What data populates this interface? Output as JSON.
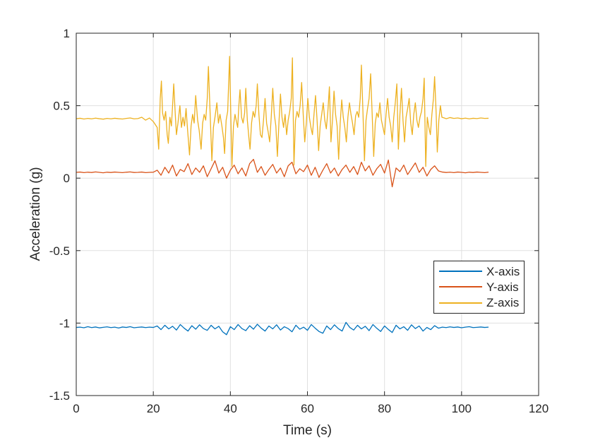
{
  "figure": {
    "background": "#ffffff"
  },
  "chart_data": {
    "type": "line",
    "title": "",
    "xlabel": "Time (s)",
    "ylabel": "Acceleration (g)",
    "xlim": [
      0,
      120
    ],
    "ylim": [
      -1.5,
      1
    ],
    "xticks": [
      0,
      20,
      40,
      60,
      80,
      100,
      120
    ],
    "xtick_labels": [
      "0",
      "20",
      "40",
      "60",
      "80",
      "100",
      "120"
    ],
    "yticks": [
      -1.5,
      -1,
      -0.5,
      0,
      0.5,
      1
    ],
    "ytick_labels": [
      "-1.5",
      "-1",
      "-0.5",
      "0",
      "0.5",
      "1"
    ],
    "grid": true,
    "grid_color": "#e0e0e0",
    "axis_color": "#262626",
    "text_color": "#262626",
    "legend": {
      "position": "right-middle",
      "entries": [
        "X-axis",
        "Y-axis",
        "Z-axis"
      ]
    },
    "series": [
      {
        "name": "X-axis",
        "color": "#0072BD",
        "t_start": 0,
        "t_step": 1,
        "values": [
          -1.03,
          -1.028,
          -1.032,
          -1.025,
          -1.031,
          -1.027,
          -1.033,
          -1.029,
          -1.026,
          -1.031,
          -1.028,
          -1.034,
          -1.027,
          -1.03,
          -1.025,
          -1.032,
          -1.029,
          -1.027,
          -1.031,
          -1.028,
          -1.03,
          -1.02,
          -1.045,
          -1.015,
          -1.04,
          -1.022,
          -1.048,
          -1.01,
          -1.035,
          -1.055,
          -1.018,
          -1.042,
          -1.012,
          -1.038,
          -1.05,
          -1.015,
          -1.04,
          -1.022,
          -1.06,
          -1.08,
          -1.025,
          -1.045,
          -1.01,
          -1.038,
          -1.052,
          -1.018,
          -1.042,
          -1.008,
          -1.035,
          -1.055,
          -1.02,
          -1.04,
          -1.012,
          -1.048,
          -1.025,
          -1.038,
          -1.06,
          -1.015,
          -1.042,
          -1.028,
          -1.05,
          -1.01,
          -1.035,
          -1.058,
          -1.07,
          -1.02,
          -1.045,
          -1.012,
          -1.038,
          -1.055,
          -0.995,
          -1.03,
          -1.048,
          -1.015,
          -1.04,
          -1.022,
          -1.052,
          -1.01,
          -1.036,
          -1.058,
          -1.02,
          -1.044,
          -1.065,
          -1.015,
          -1.04,
          -1.025,
          -1.05,
          -1.012,
          -1.038,
          -1.02,
          -1.055,
          -1.03,
          -1.045,
          -1.018,
          -1.035,
          -1.028,
          -1.031,
          -1.026,
          -1.03,
          -1.027,
          -1.032,
          -1.028,
          -1.025,
          -1.031,
          -1.029,
          -1.027,
          -1.03,
          -1.028
        ]
      },
      {
        "name": "Y-axis",
        "color": "#D95319",
        "t_start": 0,
        "t_step": 1,
        "values": [
          0.04,
          0.042,
          0.038,
          0.041,
          0.039,
          0.043,
          0.04,
          0.037,
          0.041,
          0.039,
          0.042,
          0.04,
          0.038,
          0.041,
          0.043,
          0.039,
          0.04,
          0.042,
          0.038,
          0.04,
          0.041,
          0.055,
          0.02,
          0.075,
          0.035,
          0.09,
          0.015,
          0.06,
          0.045,
          0.1,
          0.025,
          0.07,
          0.04,
          0.085,
          0.01,
          0.065,
          0.12,
          0.035,
          0.075,
          0.0,
          0.055,
          0.09,
          0.03,
          0.07,
          0.015,
          0.1,
          0.13,
          0.04,
          0.08,
          0.02,
          0.06,
          0.095,
          0.035,
          0.07,
          0.01,
          0.085,
          0.11,
          0.03,
          0.065,
          0.045,
          0.09,
          0.02,
          0.075,
          0.005,
          0.055,
          0.1,
          0.035,
          0.07,
          0.015,
          0.06,
          0.09,
          0.04,
          0.08,
          0.025,
          0.11,
          0.05,
          0.085,
          0.02,
          0.065,
          0.095,
          0.035,
          0.125,
          -0.06,
          0.07,
          0.045,
          0.09,
          0.025,
          0.065,
          0.105,
          0.04,
          0.075,
          0.015,
          0.06,
          0.085,
          0.05,
          0.042,
          0.039,
          0.041,
          0.038,
          0.042,
          0.04,
          0.037,
          0.041,
          0.039,
          0.042,
          0.04,
          0.038,
          0.041
        ]
      },
      {
        "name": "Z-axis",
        "color": "#EDB120",
        "points": [
          [
            0,
            0.41
          ],
          [
            1,
            0.413
          ],
          [
            2,
            0.408
          ],
          [
            3,
            0.412
          ],
          [
            4,
            0.409
          ],
          [
            5,
            0.414
          ],
          [
            6,
            0.41
          ],
          [
            7,
            0.407
          ],
          [
            8,
            0.412
          ],
          [
            9,
            0.409
          ],
          [
            10,
            0.413
          ],
          [
            11,
            0.41
          ],
          [
            12,
            0.408
          ],
          [
            13,
            0.412
          ],
          [
            14,
            0.415
          ],
          [
            15,
            0.409
          ],
          [
            16,
            0.411
          ],
          [
            17,
            0.42
          ],
          [
            18,
            0.4
          ],
          [
            19,
            0.415
          ],
          [
            20,
            0.39
          ],
          [
            21,
            0.35
          ],
          [
            21.4,
            0.2
          ],
          [
            21.8,
            0.55
          ],
          [
            22.1,
            0.67
          ],
          [
            22.4,
            0.45
          ],
          [
            22.8,
            0.4
          ],
          [
            23.2,
            0.46
          ],
          [
            23.6,
            0.3
          ],
          [
            23.9,
            0.24
          ],
          [
            24.3,
            0.42
          ],
          [
            24.7,
            0.36
          ],
          [
            25.0,
            0.5
          ],
          [
            25.3,
            0.65
          ],
          [
            25.7,
            0.44
          ],
          [
            26.0,
            0.3
          ],
          [
            26.4,
            0.38
          ],
          [
            26.9,
            0.5
          ],
          [
            27.3,
            0.35
          ],
          [
            27.7,
            0.42
          ],
          [
            28.1,
            0.36
          ],
          [
            28.5,
            0.48
          ],
          [
            28.9,
            0.33
          ],
          [
            29.4,
            0.16
          ],
          [
            29.8,
            0.36
          ],
          [
            30.2,
            0.44
          ],
          [
            30.6,
            0.38
          ],
          [
            31.0,
            0.57
          ],
          [
            31.5,
            0.4
          ],
          [
            31.9,
            0.33
          ],
          [
            32.4,
            0.2
          ],
          [
            32.8,
            0.38
          ],
          [
            33.2,
            0.44
          ],
          [
            33.6,
            0.4
          ],
          [
            34.0,
            0.55
          ],
          [
            34.3,
            0.77
          ],
          [
            34.7,
            0.48
          ],
          [
            35.2,
            0.12
          ],
          [
            35.6,
            0.35
          ],
          [
            36.0,
            0.42
          ],
          [
            36.5,
            0.52
          ],
          [
            36.9,
            0.38
          ],
          [
            37.3,
            0.44
          ],
          [
            37.8,
            0.36
          ],
          [
            38.2,
            0.28
          ],
          [
            38.5,
            0.17
          ],
          [
            38.9,
            0.4
          ],
          [
            39.3,
            0.46
          ],
          [
            39.8,
            0.84
          ],
          [
            40.1,
            0.45
          ],
          [
            40.4,
            0.08
          ],
          [
            40.8,
            0.36
          ],
          [
            41.2,
            0.44
          ],
          [
            41.5,
            0.4
          ],
          [
            41.9,
            0.35
          ],
          [
            42.2,
            0.5
          ],
          [
            42.5,
            0.61
          ],
          [
            42.9,
            0.42
          ],
          [
            43.3,
            0.38
          ],
          [
            43.7,
            0.45
          ],
          [
            44.0,
            0.62
          ],
          [
            44.4,
            0.4
          ],
          [
            44.8,
            0.28
          ],
          [
            45.1,
            0.2
          ],
          [
            45.5,
            0.38
          ],
          [
            45.9,
            0.46
          ],
          [
            46.3,
            0.42
          ],
          [
            46.7,
            0.5
          ],
          [
            47.0,
            0.65
          ],
          [
            47.4,
            0.44
          ],
          [
            47.8,
            0.3
          ],
          [
            48.2,
            0.28
          ],
          [
            48.6,
            0.4
          ],
          [
            49.0,
            0.55
          ],
          [
            49.4,
            0.38
          ],
          [
            49.8,
            0.32
          ],
          [
            50.2,
            0.25
          ],
          [
            50.6,
            0.42
          ],
          [
            51.0,
            0.62
          ],
          [
            51.4,
            0.44
          ],
          [
            51.8,
            0.36
          ],
          [
            52.2,
            0.15
          ],
          [
            52.6,
            0.38
          ],
          [
            53.0,
            0.58
          ],
          [
            53.4,
            0.42
          ],
          [
            53.8,
            0.35
          ],
          [
            54.2,
            0.44
          ],
          [
            54.6,
            0.3
          ],
          [
            55.0,
            0.4
          ],
          [
            55.4,
            0.46
          ],
          [
            55.8,
            0.55
          ],
          [
            56.1,
            0.83
          ],
          [
            56.5,
            0.09
          ],
          [
            56.9,
            0.4
          ],
          [
            57.3,
            0.46
          ],
          [
            57.7,
            0.42
          ],
          [
            58.1,
            0.5
          ],
          [
            58.5,
            0.66
          ],
          [
            58.9,
            0.44
          ],
          [
            59.3,
            0.25
          ],
          [
            59.7,
            0.38
          ],
          [
            60.1,
            0.55
          ],
          [
            60.5,
            0.42
          ],
          [
            60.9,
            0.35
          ],
          [
            61.3,
            0.3
          ],
          [
            61.7,
            0.44
          ],
          [
            62.1,
            0.57
          ],
          [
            62.5,
            0.4
          ],
          [
            62.9,
            0.19
          ],
          [
            63.3,
            0.36
          ],
          [
            63.7,
            0.44
          ],
          [
            64.1,
            0.52
          ],
          [
            64.5,
            0.4
          ],
          [
            64.9,
            0.34
          ],
          [
            65.3,
            0.46
          ],
          [
            65.7,
            0.63
          ],
          [
            66.1,
            0.25
          ],
          [
            66.5,
            0.4
          ],
          [
            66.9,
            0.6
          ],
          [
            67.3,
            0.44
          ],
          [
            67.7,
            0.36
          ],
          [
            68.1,
            0.13
          ],
          [
            68.5,
            0.38
          ],
          [
            68.9,
            0.54
          ],
          [
            69.3,
            0.42
          ],
          [
            69.7,
            0.35
          ],
          [
            70.1,
            0.25
          ],
          [
            70.5,
            0.42
          ],
          [
            70.9,
            0.52
          ],
          [
            71.3,
            0.44
          ],
          [
            71.7,
            0.38
          ],
          [
            72.1,
            0.3
          ],
          [
            72.5,
            0.43
          ],
          [
            72.9,
            0.46
          ],
          [
            73.3,
            0.42
          ],
          [
            73.7,
            0.55
          ],
          [
            74.0,
            0.78
          ],
          [
            74.4,
            0.46
          ],
          [
            74.8,
            0.12
          ],
          [
            75.2,
            0.4
          ],
          [
            75.6,
            0.48
          ],
          [
            76.0,
            0.55
          ],
          [
            76.4,
            0.72
          ],
          [
            76.8,
            0.44
          ],
          [
            77.2,
            0.15
          ],
          [
            77.6,
            0.38
          ],
          [
            78.0,
            0.45
          ],
          [
            78.4,
            0.42
          ],
          [
            78.8,
            0.52
          ],
          [
            79.2,
            0.4
          ],
          [
            79.6,
            0.35
          ],
          [
            80.0,
            0.3
          ],
          [
            80.4,
            0.44
          ],
          [
            80.8,
            0.55
          ],
          [
            81.2,
            0.42
          ],
          [
            81.6,
            0.36
          ],
          [
            82.0,
            0.25
          ],
          [
            82.4,
            0.42
          ],
          [
            82.8,
            0.52
          ],
          [
            83.2,
            0.65
          ],
          [
            83.6,
            0.2
          ],
          [
            84.0,
            0.44
          ],
          [
            84.4,
            0.62
          ],
          [
            84.8,
            0.4
          ],
          [
            85.2,
            0.25
          ],
          [
            85.6,
            0.42
          ],
          [
            86.0,
            0.48
          ],
          [
            86.4,
            0.55
          ],
          [
            86.8,
            0.38
          ],
          [
            87.2,
            0.3
          ],
          [
            87.6,
            0.44
          ],
          [
            88.0,
            0.52
          ],
          [
            88.4,
            0.4
          ],
          [
            88.8,
            0.35
          ],
          [
            89.2,
            0.42
          ],
          [
            89.6,
            0.46
          ],
          [
            90.0,
            0.55
          ],
          [
            90.3,
            0.69
          ],
          [
            90.7,
            0.08
          ],
          [
            91.1,
            0.42
          ],
          [
            91.5,
            0.35
          ],
          [
            91.9,
            0.3
          ],
          [
            92.3,
            0.44
          ],
          [
            92.7,
            0.55
          ],
          [
            93.0,
            0.7
          ],
          [
            93.4,
            0.45
          ],
          [
            93.7,
            0.18
          ],
          [
            94.1,
            0.4
          ],
          [
            94.5,
            0.5
          ],
          [
            94.9,
            0.42
          ],
          [
            95.5,
            0.415
          ],
          [
            96,
            0.41
          ],
          [
            97,
            0.418
          ],
          [
            98,
            0.412
          ],
          [
            99,
            0.415
          ],
          [
            100,
            0.41
          ],
          [
            101,
            0.414
          ],
          [
            102,
            0.409
          ],
          [
            103,
            0.413
          ],
          [
            104,
            0.411
          ],
          [
            105,
            0.415
          ],
          [
            106,
            0.412
          ],
          [
            107,
            0.413
          ]
        ]
      }
    ]
  }
}
